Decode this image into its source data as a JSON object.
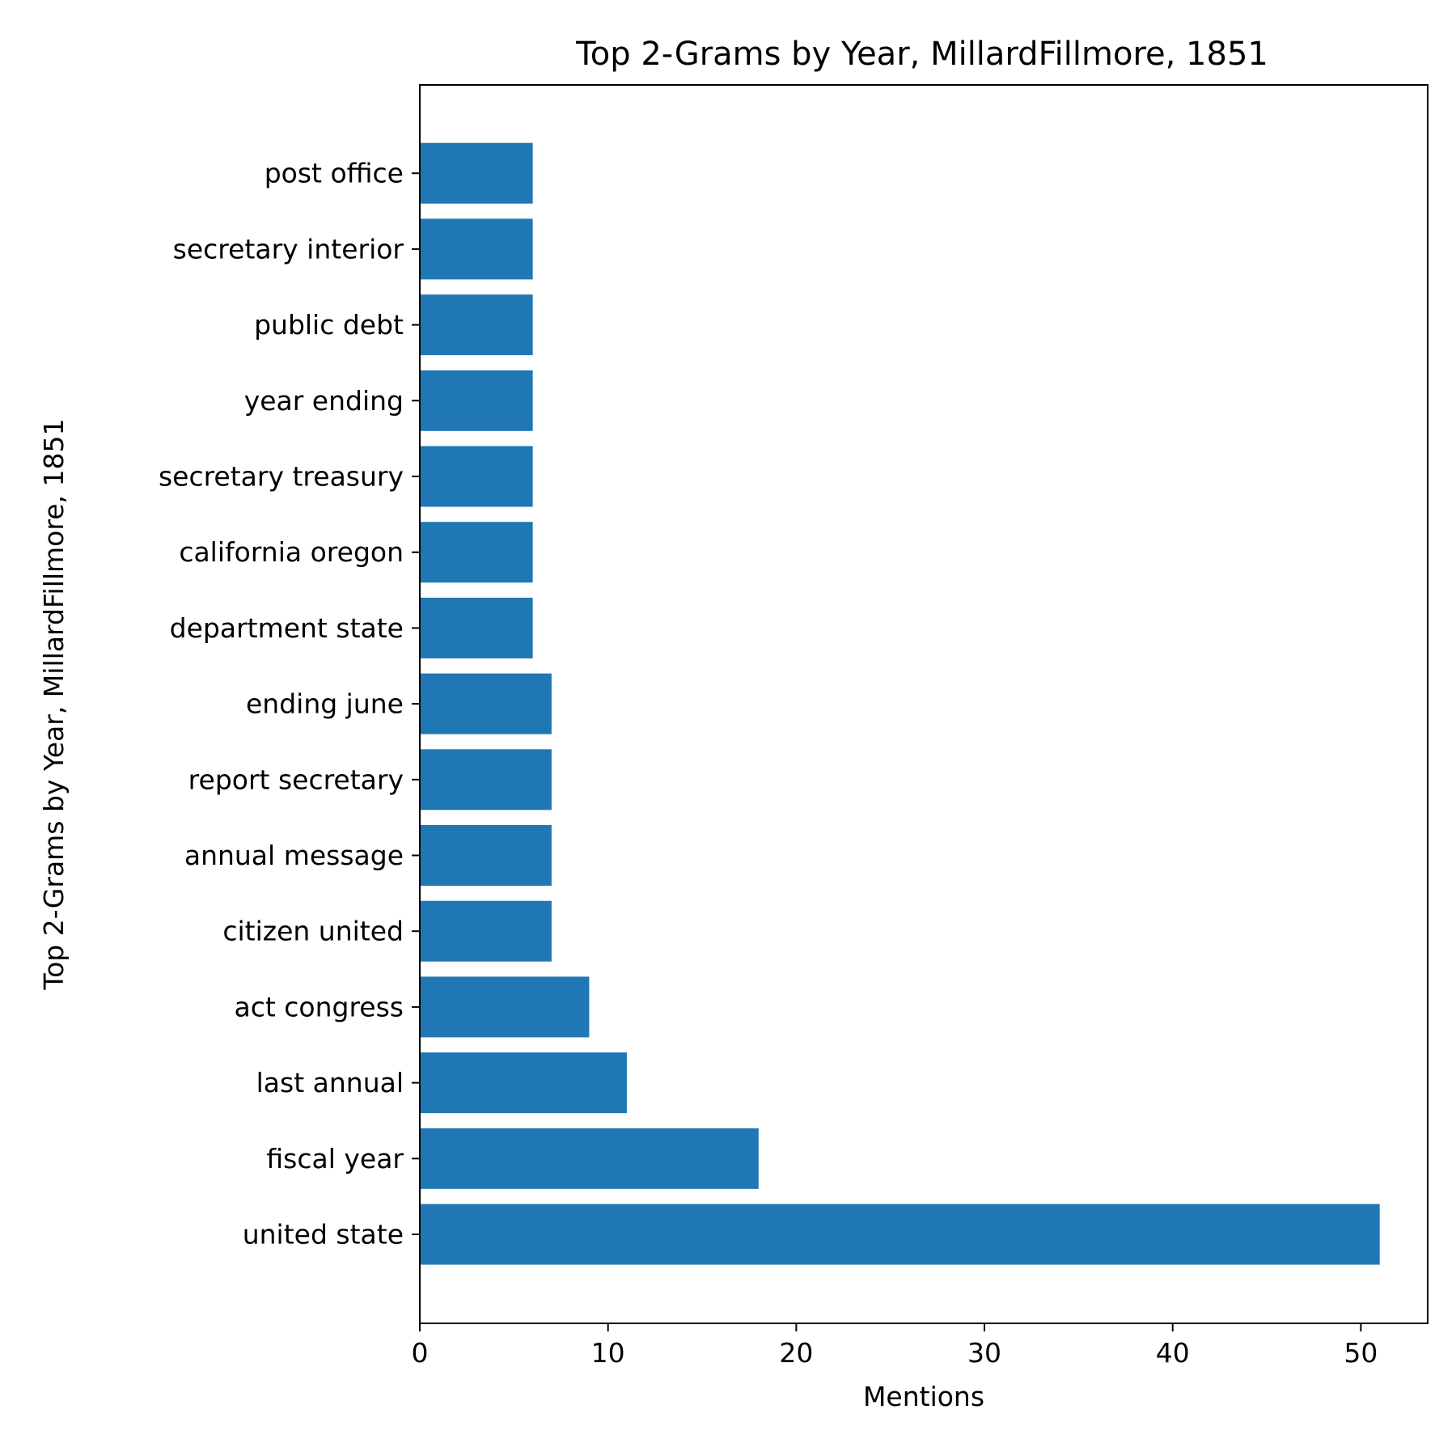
{
  "chart_data": {
    "type": "bar",
    "orientation": "horizontal",
    "title": "Top 2-Grams by Year, MillardFillmore, 1851",
    "xlabel": "Mentions",
    "ylabel": "Top 2-Grams by Year, MillardFillmore, 1851",
    "categories": [
      "united state",
      "fiscal year",
      "last annual",
      "act congress",
      "citizen united",
      "annual message",
      "report secretary",
      "ending june",
      "department state",
      "california oregon",
      "secretary treasury",
      "year ending",
      "public debt",
      "secretary interior",
      "post office"
    ],
    "values": [
      51,
      18,
      11,
      9,
      7,
      7,
      7,
      7,
      6,
      6,
      6,
      6,
      6,
      6,
      6
    ],
    "xlim": [
      0,
      53.55
    ],
    "xticks": [
      0,
      10,
      20,
      30,
      40,
      50
    ],
    "grid": false,
    "bar_color": "#1f77b4"
  }
}
